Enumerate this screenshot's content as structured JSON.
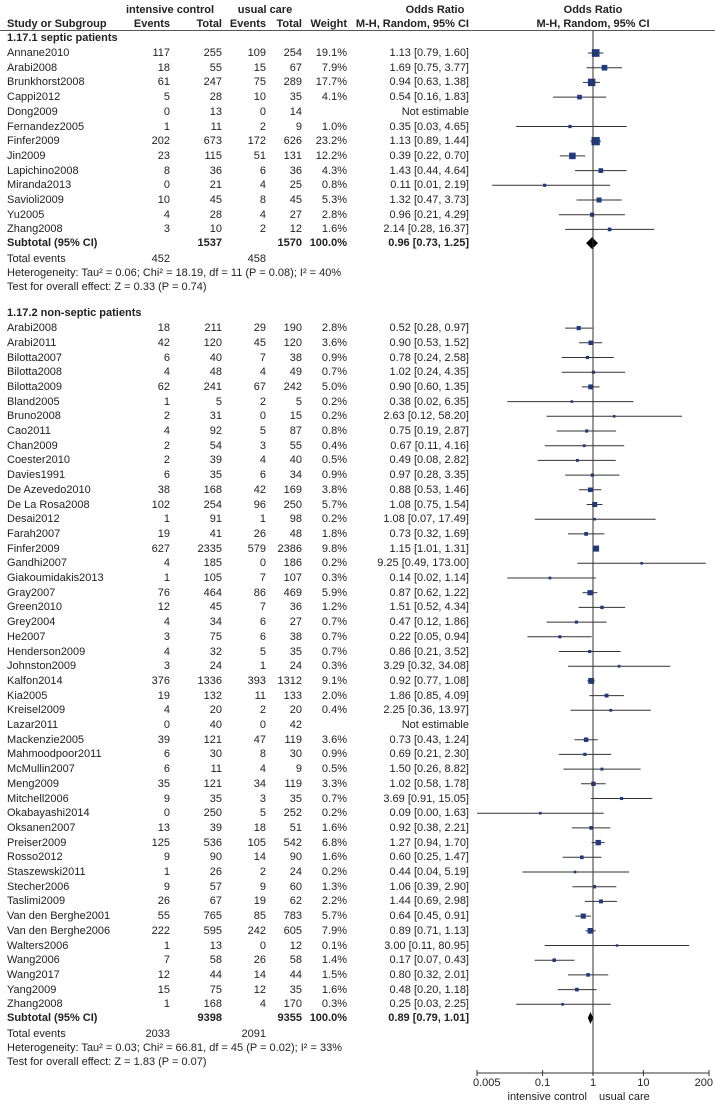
{
  "header": {
    "study_col": "Study or Subgroup",
    "group_intensive": "intensive control",
    "group_usual": "usual care",
    "events": "Events",
    "total": "Total",
    "weight": "Weight",
    "or_title": "Odds Ratio",
    "or_method": "M-H, Random, 95% CI",
    "plot_title": "Odds Ratio",
    "plot_method": "M-H, Random, 95% CI"
  },
  "chart_data": {
    "type": "forest",
    "scale": "log",
    "xlim": [
      0.005,
      200
    ],
    "x_ticks": [
      "0.005",
      "0.1",
      "1",
      "10",
      "200"
    ],
    "x_tick_values": [
      0.005,
      0.1,
      1,
      10,
      200
    ],
    "left_label": "intensive control",
    "right_label": "usual care",
    "colors": {
      "square": "#1f3a7f",
      "diamond": "#000000",
      "line": "#333333"
    },
    "columns": [
      "study",
      "intensive_events",
      "intensive_total",
      "usual_events",
      "usual_total",
      "weight",
      "or_ci"
    ],
    "groups": [
      {
        "title": "1.17.1 septic patients",
        "studies": [
          [
            "Annane2010",
            117,
            255,
            109,
            254,
            "19.1%",
            "1.13 [0.79, 1.60]"
          ],
          [
            "Arabi2008",
            18,
            55,
            15,
            67,
            "7.9%",
            "1.69 [0.75, 3.77]"
          ],
          [
            "Brunkhorst2008",
            61,
            247,
            75,
            289,
            "17.7%",
            "0.94 [0.63, 1.38]"
          ],
          [
            "Cappi2012",
            5,
            28,
            10,
            35,
            "4.1%",
            "0.54 [0.16, 1.83]"
          ],
          [
            "Dong2009",
            0,
            13,
            0,
            14,
            "",
            "Not estimable"
          ],
          [
            "Fernandez2005",
            1,
            11,
            2,
            9,
            "1.0%",
            "0.35 [0.03, 4.65]"
          ],
          [
            "Finfer2009",
            202,
            673,
            172,
            626,
            "23.2%",
            "1.13 [0.89, 1.44]"
          ],
          [
            "Jin2009",
            23,
            115,
            51,
            131,
            "12.2%",
            "0.39 [0.22, 0.70]"
          ],
          [
            "Lapichino2008",
            8,
            36,
            6,
            36,
            "4.3%",
            "1.43 [0.44, 4.64]"
          ],
          [
            "Miranda2013",
            0,
            21,
            4,
            25,
            "0.8%",
            "0.11 [0.01, 2.19]"
          ],
          [
            "Savioli2009",
            10,
            45,
            8,
            45,
            "5.3%",
            "1.32 [0.47, 3.73]"
          ],
          [
            "Yu2005",
            4,
            28,
            4,
            27,
            "2.8%",
            "0.96 [0.21, 4.29]"
          ],
          [
            "Zhang2008",
            3,
            10,
            2,
            12,
            "1.6%",
            "2.14 [0.28, 16.37]"
          ]
        ],
        "subtotal": {
          "label": "Subtotal (95% CI)",
          "intensive_total": 1537,
          "usual_total": 1570,
          "weight": "100.0%",
          "or_ci": "0.96 [0.73, 1.25]"
        },
        "total_events": {
          "label": "Total events",
          "intensive": 452,
          "usual": 458
        },
        "heterogeneity": "Heterogeneity: Tau² = 0.06; Chi² = 18.19, df = 11 (P = 0.08); I² = 40%",
        "overall_effect": "Test for overall effect: Z = 0.33 (P = 0.74)"
      },
      {
        "title": "1.17.2 non-septic patients",
        "studies": [
          [
            "Arabi2008",
            18,
            211,
            29,
            190,
            "2.8%",
            "0.52 [0.28, 0.97]"
          ],
          [
            "Arabi2011",
            42,
            120,
            45,
            120,
            "3.6%",
            "0.90 [0.53, 1.52]"
          ],
          [
            "Bilotta2007",
            6,
            40,
            7,
            38,
            "0.9%",
            "0.78 [0.24, 2.58]"
          ],
          [
            "Bilotta2008",
            4,
            48,
            4,
            49,
            "0.7%",
            "1.02 [0.24, 4.35]"
          ],
          [
            "Bilotta2009",
            62,
            241,
            67,
            242,
            "5.0%",
            "0.90 [0.60, 1.35]"
          ],
          [
            "Bland2005",
            1,
            5,
            2,
            5,
            "0.2%",
            "0.38 [0.02, 6.35]"
          ],
          [
            "Bruno2008",
            2,
            31,
            0,
            15,
            "0.2%",
            "2.63 [0.12, 58.20]"
          ],
          [
            "Cao2011",
            4,
            92,
            5,
            87,
            "0.8%",
            "0.75 [0.19, 2.87]"
          ],
          [
            "Chan2009",
            2,
            54,
            3,
            55,
            "0.4%",
            "0.67 [0.11, 4.16]"
          ],
          [
            "Coester2010",
            2,
            39,
            4,
            40,
            "0.5%",
            "0.49 [0.08, 2.82]"
          ],
          [
            "Davies1991",
            6,
            35,
            6,
            34,
            "0.9%",
            "0.97 [0.28, 3.35]"
          ],
          [
            "De Azevedo2010",
            38,
            168,
            42,
            169,
            "3.8%",
            "0.88 [0.53, 1.46]"
          ],
          [
            "De La Rosa2008",
            102,
            254,
            96,
            250,
            "5.7%",
            "1.08 [0.75, 1.54]"
          ],
          [
            "Desai2012",
            1,
            91,
            1,
            98,
            "0.2%",
            "1.08 [0.07, 17.49]"
          ],
          [
            "Farah2007",
            19,
            41,
            26,
            48,
            "1.8%",
            "0.73 [0.32, 1.69]"
          ],
          [
            "Finfer2009",
            627,
            2335,
            579,
            2386,
            "9.8%",
            "1.15 [1.01, 1.31]"
          ],
          [
            "Gandhi2007",
            4,
            185,
            0,
            186,
            "0.2%",
            "9.25 [0.49, 173.00]"
          ],
          [
            "Giakoumidakis2013",
            1,
            105,
            7,
            107,
            "0.3%",
            "0.14 [0.02, 1.14]"
          ],
          [
            "Gray2007",
            76,
            464,
            86,
            469,
            "5.9%",
            "0.87 [0.62, 1.22]"
          ],
          [
            "Green2010",
            12,
            45,
            7,
            36,
            "1.2%",
            "1.51 [0.52, 4.34]"
          ],
          [
            "Grey2004",
            4,
            34,
            6,
            27,
            "0.7%",
            "0.47 [0.12, 1.86]"
          ],
          [
            "He2007",
            3,
            75,
            6,
            38,
            "0.7%",
            "0.22 [0.05, 0.94]"
          ],
          [
            "Henderson2009",
            4,
            32,
            5,
            35,
            "0.7%",
            "0.86 [0.21, 3.52]"
          ],
          [
            "Johnston2009",
            3,
            24,
            1,
            24,
            "0.3%",
            "3.29 [0.32, 34.08]"
          ],
          [
            "Kalfon2014",
            376,
            1336,
            393,
            1312,
            "9.1%",
            "0.92 [0.77, 1.08]"
          ],
          [
            "Kia2005",
            19,
            132,
            11,
            133,
            "2.0%",
            "1.86 [0.85, 4.09]"
          ],
          [
            "Kreisel2009",
            4,
            20,
            2,
            20,
            "0.4%",
            "2.25 [0.36, 13.97]"
          ],
          [
            "Lazar2011",
            0,
            40,
            0,
            42,
            "",
            "Not estimable"
          ],
          [
            "Mackenzie2005",
            39,
            121,
            47,
            119,
            "3.6%",
            "0.73 [0.43, 1.24]"
          ],
          [
            "Mahmoodpoor2011",
            6,
            30,
            8,
            30,
            "0.9%",
            "0.69 [0.21, 2.30]"
          ],
          [
            "McMullin2007",
            6,
            11,
            4,
            9,
            "0.5%",
            "1.50 [0.26, 8.82]"
          ],
          [
            "Meng2009",
            35,
            121,
            34,
            119,
            "3.3%",
            "1.02 [0.58, 1.78]"
          ],
          [
            "Mitchell2006",
            9,
            35,
            3,
            35,
            "0.7%",
            "3.69 [0.91, 15.05]"
          ],
          [
            "Okabayashi2014",
            0,
            250,
            5,
            252,
            "0.2%",
            "0.09 [0.00, 1.63]"
          ],
          [
            "Oksanen2007",
            13,
            39,
            18,
            51,
            "1.6%",
            "0.92 [0.38, 2.21]"
          ],
          [
            "Preiser2009",
            125,
            536,
            105,
            542,
            "6.8%",
            "1.27 [0.94, 1.70]"
          ],
          [
            "Rosso2012",
            9,
            90,
            14,
            90,
            "1.6%",
            "0.60 [0.25, 1.47]"
          ],
          [
            "Staszewski2011",
            1,
            26,
            2,
            24,
            "0.2%",
            "0.44 [0.04, 5.19]"
          ],
          [
            "Stecher2006",
            9,
            57,
            9,
            60,
            "1.3%",
            "1.06 [0.39, 2.90]"
          ],
          [
            "Taslimi2009",
            26,
            67,
            19,
            62,
            "2.2%",
            "1.44 [0.69, 2.98]"
          ],
          [
            "Van den Berghe2001",
            55,
            765,
            85,
            783,
            "5.7%",
            "0.64 [0.45, 0.91]"
          ],
          [
            "Van den Berghe2006",
            222,
            595,
            242,
            605,
            "7.9%",
            "0.89 [0.71, 1.13]"
          ],
          [
            "Walters2006",
            1,
            13,
            0,
            12,
            "0.1%",
            "3.00 [0.11, 80.95]"
          ],
          [
            "Wang2006",
            7,
            58,
            26,
            58,
            "1.4%",
            "0.17 [0.07, 0.43]"
          ],
          [
            "Wang2017",
            12,
            44,
            14,
            44,
            "1.5%",
            "0.80 [0.32, 2.01]"
          ],
          [
            "Yang2009",
            15,
            75,
            12,
            35,
            "1.6%",
            "0.48 [0.20, 1.18]"
          ],
          [
            "Zhang2008",
            1,
            168,
            4,
            170,
            "0.3%",
            "0.25 [0.03, 2.25]"
          ]
        ],
        "subtotal": {
          "label": "Subtotal (95% CI)",
          "intensive_total": 9398,
          "usual_total": 9355,
          "weight": "100.0%",
          "or_ci": "0.89 [0.79, 1.01]"
        },
        "total_events": {
          "label": "Total events",
          "intensive": 2033,
          "usual": 2091
        },
        "heterogeneity": "Heterogeneity: Tau² = 0.03; Chi² = 66.81, df = 45 (P = 0.02); I² = 33%",
        "overall_effect": "Test for overall effect: Z = 1.83 (P = 0.07)"
      }
    ]
  }
}
